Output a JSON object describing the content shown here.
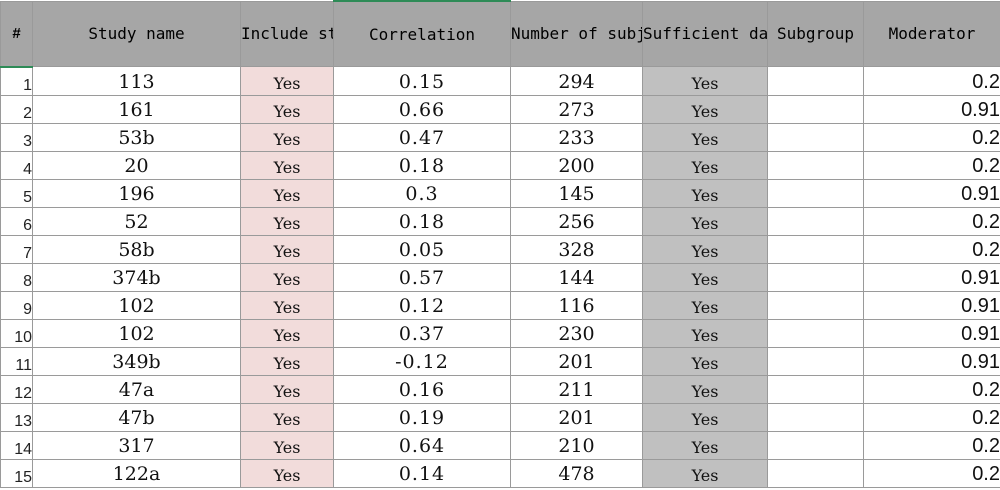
{
  "columns": [
    {
      "key": "row",
      "label": "#"
    },
    {
      "key": "study_name",
      "label": "Study name"
    },
    {
      "key": "include",
      "label": "Include study"
    },
    {
      "key": "correlation",
      "label": "Correlation"
    },
    {
      "key": "n",
      "label": "Number of subjects"
    },
    {
      "key": "sufficient",
      "label": "Sufficient data"
    },
    {
      "key": "subgroup",
      "label": "Subgroup"
    },
    {
      "key": "moderator",
      "label": "Moderator"
    }
  ],
  "rows": [
    {
      "row": "1",
      "study_name": "113",
      "include": "Yes",
      "correlation": "0.15",
      "n": "294",
      "sufficient": "Yes",
      "subgroup": "",
      "moderator": "0.2"
    },
    {
      "row": "2",
      "study_name": "161",
      "include": "Yes",
      "correlation": "0.66",
      "n": "273",
      "sufficient": "Yes",
      "subgroup": "",
      "moderator": "0.91"
    },
    {
      "row": "3",
      "study_name": "53b",
      "include": "Yes",
      "correlation": "0.47",
      "n": "233",
      "sufficient": "Yes",
      "subgroup": "",
      "moderator": "0.2"
    },
    {
      "row": "4",
      "study_name": "20",
      "include": "Yes",
      "correlation": "0.18",
      "n": "200",
      "sufficient": "Yes",
      "subgroup": "",
      "moderator": "0.2"
    },
    {
      "row": "5",
      "study_name": "196",
      "include": "Yes",
      "correlation": "0.3",
      "n": "145",
      "sufficient": "Yes",
      "subgroup": "",
      "moderator": "0.91"
    },
    {
      "row": "6",
      "study_name": "52",
      "include": "Yes",
      "correlation": "0.18",
      "n": "256",
      "sufficient": "Yes",
      "subgroup": "",
      "moderator": "0.2"
    },
    {
      "row": "7",
      "study_name": "58b",
      "include": "Yes",
      "correlation": "0.05",
      "n": "328",
      "sufficient": "Yes",
      "subgroup": "",
      "moderator": "0.2"
    },
    {
      "row": "8",
      "study_name": "374b",
      "include": "Yes",
      "correlation": "0.57",
      "n": "144",
      "sufficient": "Yes",
      "subgroup": "",
      "moderator": "0.91"
    },
    {
      "row": "9",
      "study_name": "102",
      "include": "Yes",
      "correlation": "0.12",
      "n": "116",
      "sufficient": "Yes",
      "subgroup": "",
      "moderator": "0.91"
    },
    {
      "row": "10",
      "study_name": "102",
      "include": "Yes",
      "correlation": "0.37",
      "n": "230",
      "sufficient": "Yes",
      "subgroup": "",
      "moderator": "0.91"
    },
    {
      "row": "11",
      "study_name": "349b",
      "include": "Yes",
      "correlation": "-0.12",
      "n": "201",
      "sufficient": "Yes",
      "subgroup": "",
      "moderator": "0.91"
    },
    {
      "row": "12",
      "study_name": "47a",
      "include": "Yes",
      "correlation": "0.16",
      "n": "211",
      "sufficient": "Yes",
      "subgroup": "",
      "moderator": "0.2"
    },
    {
      "row": "13",
      "study_name": "47b",
      "include": "Yes",
      "correlation": "0.19",
      "n": "201",
      "sufficient": "Yes",
      "subgroup": "",
      "moderator": "0.2"
    },
    {
      "row": "14",
      "study_name": "317",
      "include": "Yes",
      "correlation": "0.64",
      "n": "210",
      "sufficient": "Yes",
      "subgroup": "",
      "moderator": "0.2"
    },
    {
      "row": "15",
      "study_name": "122a",
      "include": "Yes",
      "correlation": "0.14",
      "n": "478",
      "sufficient": "Yes",
      "subgroup": "",
      "moderator": "0.2"
    }
  ],
  "colors": {
    "header_bg": "#a6a6a6",
    "include_bg": "#f2dcdb",
    "sufficient_bg": "#c0c0c0",
    "selection_accent": "#2e8b57",
    "gridline": "#9a9a9a"
  }
}
